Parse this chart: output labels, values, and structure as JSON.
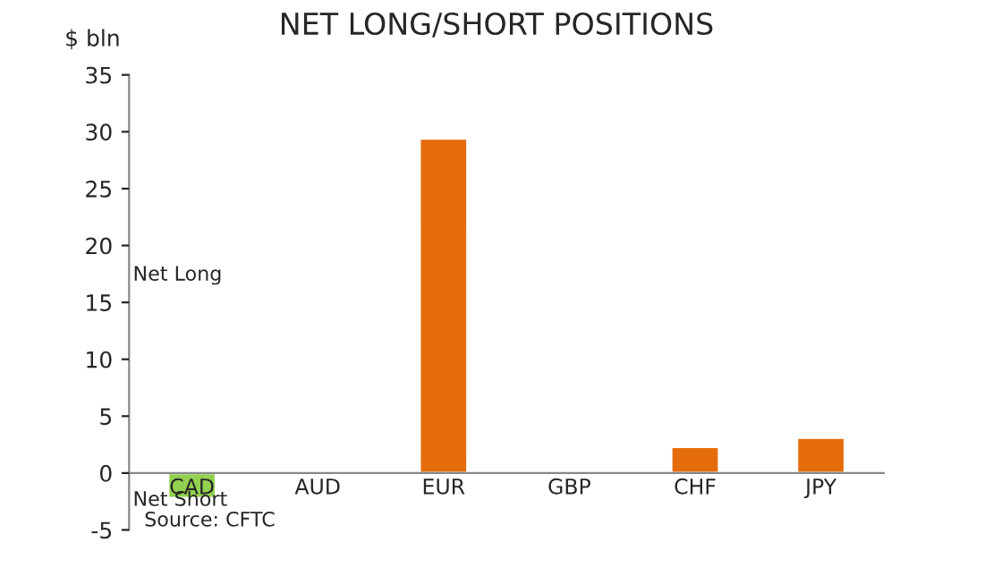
{
  "chart_data": {
    "type": "bar",
    "title": "NET LONG/SHORT POSITIONS",
    "ylabel": "$ bln",
    "categories": [
      "CAD",
      "AUD",
      "EUR",
      "GBP",
      "CHF",
      "JPY"
    ],
    "values": [
      -2.2,
      -0.2,
      29.4,
      -0.2,
      2.3,
      3.1
    ],
    "colors": [
      "#92d050",
      "#92d050",
      "#e46c0a",
      "#92d050",
      "#e46c0a",
      "#e46c0a"
    ],
    "ylim": [
      -5,
      35
    ],
    "yticks": [
      -5,
      0,
      5,
      10,
      15,
      20,
      25,
      30,
      35
    ],
    "grid": false,
    "annotations": [
      "Net Long",
      "Net Short",
      "Source: CFTC"
    ]
  }
}
